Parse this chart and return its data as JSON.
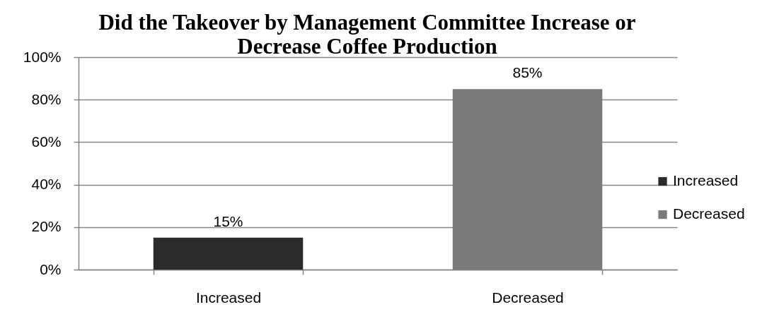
{
  "chart_data": {
    "type": "bar",
    "title": "Did the  Takeover by Management Committee Increase or Decrease Coffee Production",
    "categories": [
      "Increased",
      "Decreased"
    ],
    "stacked": true,
    "series": [
      {
        "name": "Increased",
        "color": "#2b2b2b",
        "values": [
          15,
          null
        ],
        "value_labels": [
          "15%",
          null
        ]
      },
      {
        "name": "Decreased",
        "color": "#7a7a7a",
        "values": [
          null,
          85
        ],
        "value_labels": [
          null,
          "85%"
        ]
      }
    ],
    "ylim": [
      0,
      100
    ],
    "yticks": [
      {
        "value": 0,
        "label": "0%"
      },
      {
        "value": 20,
        "label": "20%"
      },
      {
        "value": 40,
        "label": "40%"
      },
      {
        "value": 60,
        "label": "60%"
      },
      {
        "value": 80,
        "label": "80%"
      },
      {
        "value": 100,
        "label": "100%"
      }
    ],
    "grid": "y",
    "legend": "right"
  }
}
